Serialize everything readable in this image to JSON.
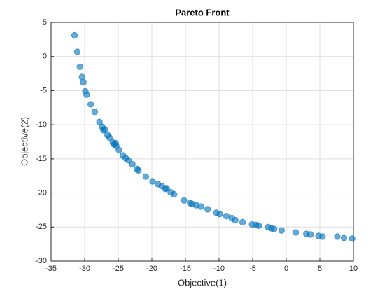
{
  "chart_data": {
    "type": "scatter",
    "title": "Pareto Front",
    "xlabel": "Objective(1)",
    "ylabel": "Objective(2)",
    "color": "#0072bd",
    "grid": true,
    "xlim": [
      -35,
      10
    ],
    "xticks": [
      -35,
      -30,
      -25,
      -20,
      -15,
      -10,
      -5,
      0,
      5,
      10
    ],
    "ylim": [
      -30,
      5
    ],
    "yticks": [
      -30,
      -25,
      -20,
      -15,
      -10,
      -5,
      0,
      5
    ],
    "x": [
      -31.5,
      -31.1,
      -30.7,
      -30.4,
      -30.2,
      -29.9,
      -29.7,
      -29.1,
      -28.5,
      -27.8,
      -27.4,
      -27.2,
      -27.0,
      -26.6,
      -26.3,
      -25.8,
      -25.6,
      -25.4,
      -25.3,
      -24.9,
      -24.3,
      -23.9,
      -23.5,
      -22.9,
      -22.2,
      -22.0,
      -20.9,
      -19.9,
      -19.1,
      -18.5,
      -18.0,
      -17.8,
      -17.2,
      -16.7,
      -15.2,
      -14.3,
      -14.0,
      -13.4,
      -12.7,
      -11.7,
      -10.4,
      -9.9,
      -8.9,
      -8.1,
      -7.6,
      -6.5,
      -5.1,
      -4.5,
      -4.1,
      -2.7,
      -2.2,
      -1.8,
      -0.7,
      1.4,
      3.0,
      3.6,
      4.8,
      5.4,
      7.6,
      8.6,
      9.8
    ],
    "y": [
      3.1,
      0.7,
      -1.5,
      -3.0,
      -3.8,
      -5.1,
      -5.6,
      -7.0,
      -8.1,
      -9.6,
      -10.3,
      -10.8,
      -10.7,
      -11.5,
      -11.9,
      -12.6,
      -12.9,
      -12.7,
      -13.1,
      -13.7,
      -14.5,
      -14.9,
      -15.2,
      -15.8,
      -16.5,
      -16.7,
      -17.6,
      -18.3,
      -18.7,
      -19.0,
      -19.4,
      -19.3,
      -19.9,
      -20.2,
      -21.1,
      -21.5,
      -21.6,
      -21.8,
      -22.0,
      -22.4,
      -22.9,
      -23.1,
      -23.4,
      -23.7,
      -24.0,
      -24.3,
      -24.6,
      -24.7,
      -24.8,
      -25.0,
      -25.2,
      -25.3,
      -25.5,
      -25.8,
      -26.0,
      -26.1,
      -26.3,
      -26.4,
      -26.4,
      -26.6,
      -26.7
    ]
  }
}
